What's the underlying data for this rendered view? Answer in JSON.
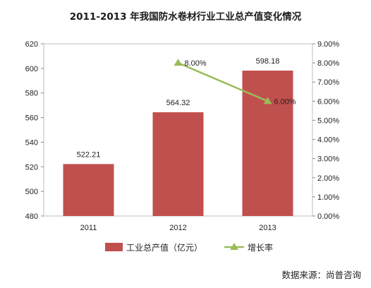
{
  "chart_data": {
    "type": "bar+line",
    "title": "2011-2013 年我国防水卷材行业工业总产值变化情况",
    "categories": [
      "2011",
      "2012",
      "2013"
    ],
    "series": [
      {
        "name": "工业总产值（亿元）",
        "type": "bar",
        "axis": "left",
        "values": [
          522.21,
          564.32,
          598.18
        ],
        "labels": [
          "522.21",
          "564.32",
          "598.18"
        ],
        "color": "#c0504d"
      },
      {
        "name": "增长率",
        "type": "line",
        "axis": "right",
        "values": [
          null,
          8.0,
          6.0
        ],
        "labels": [
          "",
          "8.00%",
          "6.00%"
        ],
        "color": "#9bbb59"
      }
    ],
    "left_axis": {
      "min": 480,
      "max": 620,
      "step": 20,
      "ticks": [
        "480",
        "500",
        "520",
        "540",
        "560",
        "580",
        "600",
        "620"
      ]
    },
    "right_axis": {
      "min": 0,
      "max": 9,
      "step": 1,
      "ticks": [
        "0.00%",
        "1.00%",
        "2.00%",
        "3.00%",
        "4.00%",
        "5.00%",
        "6.00%",
        "7.00%",
        "8.00%",
        "9.00%"
      ]
    },
    "grid": false,
    "legend_position": "bottom",
    "source": "数据来源：尚普咨询"
  }
}
